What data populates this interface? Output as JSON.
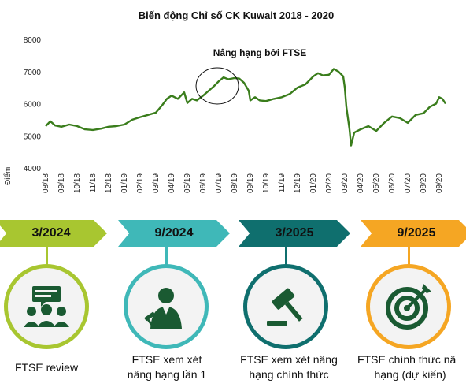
{
  "chart_data": {
    "type": "line",
    "title": "Biến động Chỉ số CK Kuwait 2018 - 2020",
    "ylabel": "Điểm",
    "ylim": [
      4000,
      8000
    ],
    "yticks": [
      4000,
      5000,
      6000,
      7000,
      8000
    ],
    "xtick_labels": [
      "08/18",
      "09/18",
      "10/18",
      "11/18",
      "12/18",
      "01/19",
      "02/19",
      "03/19",
      "04/19",
      "05/19",
      "06/19",
      "07/19",
      "08/19",
      "09/19",
      "10/19",
      "11/19",
      "12/19",
      "01/20",
      "02/20",
      "03/20",
      "04/20",
      "05/20",
      "06/20",
      "07/20",
      "08/20",
      "09/20"
    ],
    "annotation": "Nâng hạng bởi FTSE",
    "color": "#3a7d1c",
    "series": [
      {
        "x": [
          0,
          0.3,
          0.6,
          1,
          1.5,
          2,
          2.5,
          3,
          3.5,
          4,
          4.5,
          5,
          5.5,
          6,
          6.5,
          7,
          7.4,
          7.7,
          8,
          8.4,
          8.8,
          9,
          9.3,
          9.6,
          10,
          10.4,
          10.7,
          11,
          11.3,
          11.6,
          12,
          12.3,
          12.6,
          12.9,
          13,
          13.3,
          13.6,
          14,
          14.5,
          15,
          15.5,
          16,
          16.5,
          17,
          17.3,
          17.6,
          18,
          18.3,
          18.6,
          18.9,
          19,
          19.1,
          19.3,
          19.4,
          19.6,
          20,
          20.5,
          21,
          21.5,
          22,
          22.5,
          23,
          23.5,
          24,
          24.4,
          24.8,
          25,
          25.2,
          25.4
        ],
        "y": [
          5300,
          5450,
          5320,
          5280,
          5350,
          5300,
          5200,
          5180,
          5220,
          5280,
          5300,
          5350,
          5500,
          5580,
          5650,
          5720,
          5950,
          6150,
          6250,
          6150,
          6350,
          6020,
          6150,
          6100,
          6250,
          6420,
          6550,
          6700,
          6820,
          6760,
          6800,
          6780,
          6650,
          6400,
          6100,
          6200,
          6100,
          6080,
          6150,
          6200,
          6300,
          6500,
          6600,
          6850,
          6950,
          6880,
          6900,
          7080,
          7000,
          6850,
          6500,
          5900,
          5200,
          4700,
          5100,
          5200,
          5300,
          5150,
          5400,
          5600,
          5550,
          5400,
          5650,
          5700,
          5900,
          6000,
          6200,
          6150,
          6000
        ]
      }
    ]
  },
  "timeline": [
    {
      "date": "3/2024",
      "caption_lines": [
        "FTSE review"
      ],
      "icon": "review-meeting-icon",
      "color": "#a8c630"
    },
    {
      "date": "9/2024",
      "caption_lines": [
        "FTSE xem xét",
        "nâng hạng lần 1"
      ],
      "icon": "judge-icon",
      "color": "#3fb8b8"
    },
    {
      "date": "3/2025",
      "caption_lines": [
        "FTSE xem xét nâng",
        "hạng chính thức"
      ],
      "icon": "gavel-icon",
      "color": "#0f6f6e"
    },
    {
      "date": "9/2025",
      "caption_lines": [
        "FTSE chính thức nâ",
        "hạng (dự kiến)"
      ],
      "icon": "target-icon",
      "color": "#f5a623"
    }
  ]
}
